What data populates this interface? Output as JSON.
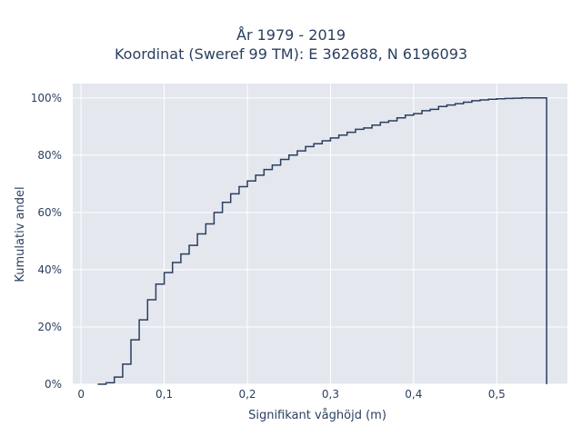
{
  "chart_data": {
    "type": "line",
    "title_line1": "År 1979 - 2019",
    "title_line2": "Koordinat (Sweref 99 TM): E 362688, N 6196093",
    "xlabel": "Signifikant våghöjd (m)",
    "ylabel": "Kumulativ andel",
    "xlim": [
      -0.01,
      0.585
    ],
    "ylim": [
      0,
      1.05
    ],
    "x_ticks": [
      0,
      0.1,
      0.2,
      0.3,
      0.4,
      0.5
    ],
    "x_tick_labels": [
      "0",
      "0,1",
      "0,2",
      "0,3",
      "0,4",
      "0,5"
    ],
    "y_ticks": [
      0,
      0.2,
      0.4,
      0.6,
      0.8,
      1.0
    ],
    "y_tick_labels": [
      "0%",
      "20%",
      "40%",
      "60%",
      "80%",
      "100%"
    ],
    "grid": true,
    "line_color": "#2a3f5f",
    "plot_bg": "#e5e7ef",
    "series": [
      {
        "step": "hv",
        "x": [
          0.02,
          0.03,
          0.04,
          0.05,
          0.06,
          0.07,
          0.08,
          0.09,
          0.1,
          0.11,
          0.12,
          0.13,
          0.14,
          0.15,
          0.16,
          0.17,
          0.18,
          0.19,
          0.2,
          0.21,
          0.22,
          0.23,
          0.24,
          0.25,
          0.26,
          0.27,
          0.28,
          0.29,
          0.3,
          0.31,
          0.32,
          0.33,
          0.34,
          0.35,
          0.36,
          0.37,
          0.38,
          0.39,
          0.4,
          0.41,
          0.42,
          0.43,
          0.44,
          0.45,
          0.46,
          0.47,
          0.48,
          0.49,
          0.5,
          0.51,
          0.52,
          0.53,
          0.54,
          0.56
        ],
        "y": [
          0.0,
          0.005,
          0.025,
          0.07,
          0.155,
          0.225,
          0.295,
          0.35,
          0.39,
          0.425,
          0.455,
          0.485,
          0.525,
          0.56,
          0.6,
          0.635,
          0.665,
          0.69,
          0.71,
          0.73,
          0.75,
          0.765,
          0.785,
          0.8,
          0.815,
          0.83,
          0.84,
          0.85,
          0.86,
          0.87,
          0.88,
          0.89,
          0.895,
          0.905,
          0.915,
          0.92,
          0.93,
          0.94,
          0.945,
          0.955,
          0.96,
          0.97,
          0.975,
          0.98,
          0.985,
          0.99,
          0.993,
          0.995,
          0.997,
          0.998,
          0.999,
          1.0,
          1.0,
          0.0
        ]
      }
    ]
  }
}
